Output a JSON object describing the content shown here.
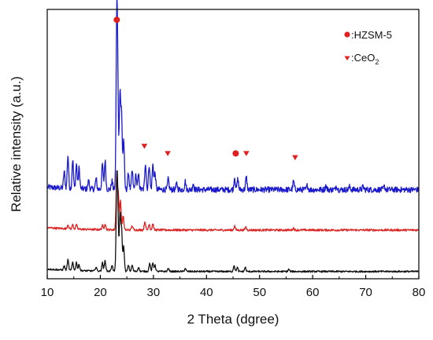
{
  "chart_data": {
    "type": "line",
    "title": "",
    "xlabel": "2 Theta (dgree)",
    "ylabel": "Relative intensity (a.u.)",
    "xlim": [
      10,
      80
    ],
    "xticks": [
      10,
      20,
      30,
      40,
      50,
      60,
      70,
      80
    ],
    "yticks_shown": false,
    "grid": false,
    "legend_position": "top-right",
    "legend": [
      {
        "marker": "circle",
        "label": ":HZSM-5",
        "color": "#e02020"
      },
      {
        "marker": "triangle-down",
        "label_main": ":CeO",
        "label_sub": "2",
        "color": "#e02020"
      }
    ],
    "series": [
      {
        "color": "#1a1acc",
        "baseline": 0.43,
        "noise": 0.014,
        "peaks": [
          [
            13.2,
            0.08
          ],
          [
            13.9,
            0.16
          ],
          [
            14.8,
            0.14
          ],
          [
            15.5,
            0.12
          ],
          [
            16.0,
            0.1
          ],
          [
            17.8,
            0.04
          ],
          [
            19.2,
            0.05
          ],
          [
            20.4,
            0.12
          ],
          [
            20.9,
            0.14
          ],
          [
            22.2,
            0.04
          ],
          [
            23.1,
            0.79
          ],
          [
            23.3,
            0.38
          ],
          [
            23.7,
            0.46
          ],
          [
            24.0,
            0.35
          ],
          [
            24.4,
            0.24
          ],
          [
            25.3,
            0.08
          ],
          [
            26.0,
            0.09
          ],
          [
            26.7,
            0.07
          ],
          [
            27.2,
            0.07
          ],
          [
            28.5,
            0.13
          ],
          [
            29.2,
            0.12
          ],
          [
            29.9,
            0.12
          ],
          [
            30.3,
            0.08
          ],
          [
            32.8,
            0.05
          ],
          [
            34.4,
            0.03
          ],
          [
            36.0,
            0.04
          ],
          [
            37.5,
            0.03
          ],
          [
            45.3,
            0.06
          ],
          [
            45.9,
            0.05
          ],
          [
            47.5,
            0.06
          ],
          [
            56.4,
            0.04
          ],
          [
            59.0,
            0.02
          ],
          [
            62.5,
            0.02
          ],
          [
            64.5,
            0.02
          ],
          [
            67.0,
            0.015
          ],
          [
            69.5,
            0.015
          ],
          [
            73.5,
            0.015
          ]
        ]
      },
      {
        "color": "#dd2222",
        "baseline": 0.235,
        "noise": 0.005,
        "peaks": [
          [
            13.9,
            0.02
          ],
          [
            14.8,
            0.02
          ],
          [
            15.5,
            0.02
          ],
          [
            20.4,
            0.02
          ],
          [
            20.9,
            0.03
          ],
          [
            23.1,
            0.27
          ],
          [
            23.4,
            0.16
          ],
          [
            23.8,
            0.14
          ],
          [
            24.3,
            0.07
          ],
          [
            26.0,
            0.02
          ],
          [
            28.4,
            0.04
          ],
          [
            29.2,
            0.03
          ],
          [
            29.9,
            0.03
          ],
          [
            45.3,
            0.02
          ],
          [
            47.4,
            0.015
          ],
          [
            56.4,
            0.01
          ]
        ]
      },
      {
        "color": "#111111",
        "baseline": 0.035,
        "noise": 0.004,
        "peaks": [
          [
            13.2,
            0.02
          ],
          [
            13.9,
            0.05
          ],
          [
            14.8,
            0.04
          ],
          [
            15.5,
            0.04
          ],
          [
            16.0,
            0.03
          ],
          [
            19.2,
            0.02
          ],
          [
            20.4,
            0.04
          ],
          [
            20.9,
            0.05
          ],
          [
            22.2,
            0.03
          ],
          [
            23.1,
            0.39
          ],
          [
            23.3,
            0.25
          ],
          [
            23.7,
            0.27
          ],
          [
            24.0,
            0.2
          ],
          [
            24.4,
            0.12
          ],
          [
            25.3,
            0.03
          ],
          [
            26.0,
            0.03
          ],
          [
            27.2,
            0.02
          ],
          [
            29.3,
            0.04
          ],
          [
            29.9,
            0.04
          ],
          [
            30.3,
            0.03
          ],
          [
            32.8,
            0.015
          ],
          [
            36.0,
            0.015
          ],
          [
            45.2,
            0.03
          ],
          [
            45.8,
            0.02
          ],
          [
            47.3,
            0.02
          ],
          [
            55.5,
            0.01
          ]
        ]
      }
    ],
    "markers": [
      {
        "x": 23.1,
        "y": 1.25,
        "shape": "circle",
        "color": "#e02020"
      },
      {
        "x": 28.3,
        "y": 0.64,
        "shape": "triangle-down",
        "color": "#e02020"
      },
      {
        "x": 32.7,
        "y": 0.605,
        "shape": "triangle-down",
        "color": "#e02020"
      },
      {
        "x": 45.5,
        "y": 0.605,
        "shape": "circle",
        "color": "#e02020"
      },
      {
        "x": 47.5,
        "y": 0.605,
        "shape": "triangle-down",
        "color": "#e02020"
      },
      {
        "x": 56.7,
        "y": 0.585,
        "shape": "triangle-down",
        "color": "#e02020"
      }
    ],
    "y_range": [
      0,
      1.3
    ]
  }
}
